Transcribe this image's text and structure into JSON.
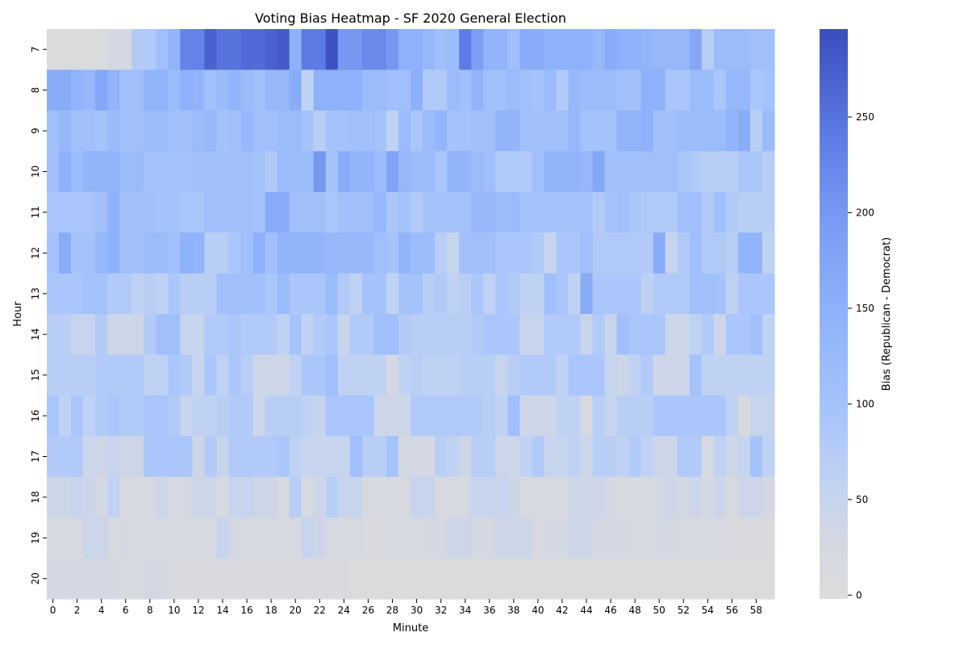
{
  "chart_data": {
    "type": "heatmap",
    "title": "Voting Bias Heatmap - SF 2020 General Election",
    "xlabel": "Minute",
    "ylabel": "Hour",
    "colorbar_label": "Bias (Republican - Democrat)",
    "colorbar_ticks": [
      0,
      50,
      100,
      150,
      200,
      250
    ],
    "vmin": -2,
    "vmax": 296,
    "colors": {
      "low": "#dcdcdc",
      "high": "#3a4dbf"
    },
    "hours": [
      7,
      8,
      9,
      10,
      11,
      12,
      13,
      14,
      15,
      16,
      17,
      18,
      19,
      20
    ],
    "minutes_tick_labels": [
      0,
      2,
      4,
      6,
      8,
      10,
      12,
      14,
      16,
      18,
      20,
      22,
      24,
      26,
      28,
      30,
      32,
      34,
      36,
      38,
      40,
      42,
      44,
      46,
      48,
      50,
      52,
      54,
      56,
      58
    ],
    "values": [
      [
        5,
        5,
        5,
        5,
        5,
        30,
        30,
        80,
        80,
        110,
        140,
        230,
        230,
        270,
        250,
        250,
        260,
        260,
        270,
        280,
        150,
        240,
        240,
        290,
        200,
        200,
        220,
        220,
        200,
        150,
        150,
        130,
        110,
        120,
        240,
        190,
        140,
        140,
        110,
        160,
        160,
        150,
        150,
        150,
        150,
        130,
        160,
        150,
        150,
        140,
        130,
        130,
        130,
        170,
        70,
        120,
        120,
        120,
        110,
        110
      ],
      [
        160,
        160,
        140,
        130,
        170,
        140,
        110,
        110,
        140,
        140,
        120,
        150,
        140,
        110,
        120,
        140,
        120,
        110,
        130,
        130,
        160,
        60,
        150,
        150,
        150,
        150,
        120,
        120,
        110,
        110,
        150,
        80,
        80,
        120,
        110,
        140,
        110,
        110,
        120,
        110,
        100,
        120,
        80,
        130,
        120,
        120,
        120,
        110,
        110,
        150,
        150,
        90,
        90,
        120,
        120,
        90,
        130,
        130,
        90,
        100,
        100
      ],
      [
        110,
        130,
        110,
        110,
        100,
        120,
        110,
        110,
        120,
        120,
        110,
        110,
        120,
        130,
        100,
        110,
        130,
        110,
        110,
        120,
        120,
        100,
        70,
        100,
        100,
        110,
        110,
        100,
        60,
        120,
        90,
        120,
        140,
        100,
        100,
        110,
        110,
        140,
        140,
        110,
        110,
        110,
        110,
        130,
        100,
        100,
        100,
        140,
        140,
        150,
        110,
        110,
        120,
        120,
        120,
        120,
        140,
        160,
        70,
        120,
        120
      ],
      [
        110,
        150,
        120,
        140,
        140,
        140,
        120,
        120,
        100,
        100,
        100,
        100,
        110,
        110,
        110,
        110,
        110,
        100,
        80,
        120,
        120,
        120,
        200,
        100,
        160,
        140,
        140,
        120,
        180,
        130,
        120,
        120,
        90,
        140,
        140,
        120,
        110,
        80,
        80,
        80,
        110,
        140,
        140,
        140,
        130,
        170,
        110,
        110,
        110,
        110,
        110,
        110,
        90,
        80,
        70,
        70,
        70,
        90,
        90,
        70,
        110
      ],
      [
        90,
        90,
        90,
        90,
        110,
        150,
        110,
        110,
        110,
        100,
        100,
        90,
        90,
        110,
        110,
        110,
        110,
        100,
        160,
        160,
        110,
        110,
        110,
        90,
        110,
        110,
        110,
        130,
        90,
        100,
        80,
        100,
        100,
        100,
        100,
        130,
        130,
        120,
        120,
        100,
        100,
        100,
        100,
        100,
        100,
        80,
        100,
        110,
        90,
        80,
        80,
        80,
        110,
        110,
        80,
        110,
        80,
        70,
        70,
        70,
        80,
        90
      ],
      [
        100,
        160,
        100,
        100,
        130,
        150,
        110,
        110,
        120,
        120,
        110,
        150,
        140,
        70,
        70,
        90,
        110,
        150,
        110,
        140,
        140,
        140,
        140,
        130,
        130,
        130,
        130,
        110,
        100,
        140,
        120,
        120,
        70,
        50,
        110,
        110,
        110,
        90,
        90,
        90,
        80,
        50,
        90,
        90,
        110,
        80,
        80,
        80,
        80,
        80,
        160,
        50,
        80,
        110,
        80,
        80,
        70,
        140,
        140,
        60,
        60,
        110,
        110
      ],
      [
        90,
        90,
        90,
        100,
        100,
        80,
        80,
        60,
        70,
        60,
        90,
        70,
        70,
        70,
        110,
        110,
        110,
        110,
        90,
        120,
        90,
        90,
        90,
        120,
        80,
        60,
        100,
        100,
        60,
        100,
        100,
        70,
        80,
        60,
        70,
        90,
        60,
        90,
        80,
        60,
        60,
        110,
        90,
        60,
        160,
        90,
        90,
        90,
        90,
        60,
        80,
        80,
        80,
        110,
        110,
        100,
        60,
        90,
        90,
        90,
        80
      ],
      [
        70,
        70,
        50,
        50,
        80,
        40,
        40,
        40,
        80,
        110,
        110,
        50,
        50,
        80,
        80,
        90,
        80,
        80,
        80,
        60,
        100,
        60,
        80,
        90,
        50,
        80,
        80,
        110,
        110,
        80,
        70,
        70,
        70,
        70,
        70,
        80,
        90,
        90,
        90,
        50,
        50,
        80,
        80,
        80,
        50,
        80,
        50,
        110,
        90,
        90,
        90,
        40,
        40,
        60,
        80,
        40,
        90,
        90,
        110,
        60,
        50,
        60
      ],
      [
        70,
        70,
        70,
        70,
        80,
        80,
        80,
        80,
        60,
        60,
        90,
        80,
        50,
        90,
        60,
        90,
        70,
        40,
        40,
        40,
        60,
        90,
        90,
        110,
        60,
        60,
        60,
        60,
        30,
        60,
        70,
        60,
        60,
        60,
        70,
        70,
        70,
        50,
        70,
        80,
        80,
        80,
        60,
        90,
        90,
        90,
        50,
        40,
        60,
        80,
        40,
        40,
        40,
        100,
        60,
        60,
        60,
        60,
        60,
        60,
        60,
        140
      ],
      [
        90,
        60,
        90,
        60,
        80,
        90,
        80,
        80,
        90,
        90,
        80,
        50,
        60,
        60,
        70,
        80,
        80,
        40,
        70,
        70,
        70,
        60,
        50,
        90,
        90,
        90,
        90,
        40,
        40,
        40,
        80,
        80,
        80,
        80,
        80,
        80,
        70,
        60,
        110,
        40,
        40,
        40,
        60,
        60,
        20,
        70,
        50,
        70,
        70,
        70,
        90,
        90,
        90,
        90,
        90,
        90,
        60,
        20,
        50,
        50,
        40,
        70,
        70,
        80
      ],
      [
        80,
        80,
        80,
        40,
        40,
        50,
        40,
        40,
        90,
        90,
        90,
        90,
        40,
        80,
        50,
        80,
        80,
        80,
        80,
        90,
        60,
        50,
        50,
        50,
        50,
        110,
        70,
        70,
        100,
        30,
        30,
        30,
        70,
        60,
        40,
        70,
        70,
        40,
        40,
        60,
        80,
        50,
        50,
        60,
        40,
        70,
        70,
        60,
        80,
        60,
        40,
        40,
        80,
        80,
        20,
        60,
        40,
        50,
        100,
        60,
        60,
        40,
        40,
        40,
        30
      ],
      [
        40,
        40,
        50,
        40,
        30,
        60,
        20,
        20,
        20,
        40,
        20,
        30,
        40,
        40,
        20,
        50,
        50,
        40,
        40,
        20,
        70,
        20,
        40,
        70,
        50,
        50,
        20,
        20,
        20,
        20,
        50,
        50,
        20,
        20,
        20,
        50,
        50,
        50,
        40,
        20,
        20,
        20,
        20,
        40,
        40,
        40,
        30,
        20,
        20,
        20,
        30,
        40,
        30,
        40,
        30,
        40,
        20,
        40,
        40,
        30,
        20,
        40,
        60,
        20,
        20,
        20,
        20
      ],
      [
        20,
        20,
        20,
        40,
        40,
        20,
        30,
        20,
        20,
        20,
        20,
        20,
        20,
        20,
        50,
        30,
        20,
        20,
        20,
        20,
        20,
        50,
        40,
        20,
        20,
        20,
        10,
        10,
        20,
        20,
        20,
        30,
        30,
        40,
        40,
        30,
        30,
        40,
        40,
        40,
        20,
        30,
        30,
        40,
        40,
        30,
        30,
        30,
        20,
        20,
        30,
        30,
        20,
        20,
        20,
        20,
        10,
        10,
        10,
        10,
        10,
        10,
        30,
        40,
        20,
        10,
        30,
        40,
        40,
        10,
        20,
        20,
        20,
        20,
        30,
        30,
        30,
        20,
        30
      ],
      [
        30,
        30,
        30,
        30,
        30,
        30,
        15,
        15,
        30,
        30,
        12,
        12,
        12,
        12,
        12,
        12,
        10,
        10,
        10,
        10,
        10,
        10,
        10,
        10,
        10,
        5,
        5,
        5,
        5,
        5,
        5,
        5,
        5,
        5,
        5,
        5,
        5,
        5,
        5,
        5,
        5,
        5,
        5,
        5,
        5,
        5,
        5,
        5,
        5,
        5,
        5,
        5,
        5,
        5,
        5,
        5,
        5,
        5,
        5,
        5
      ]
    ]
  }
}
